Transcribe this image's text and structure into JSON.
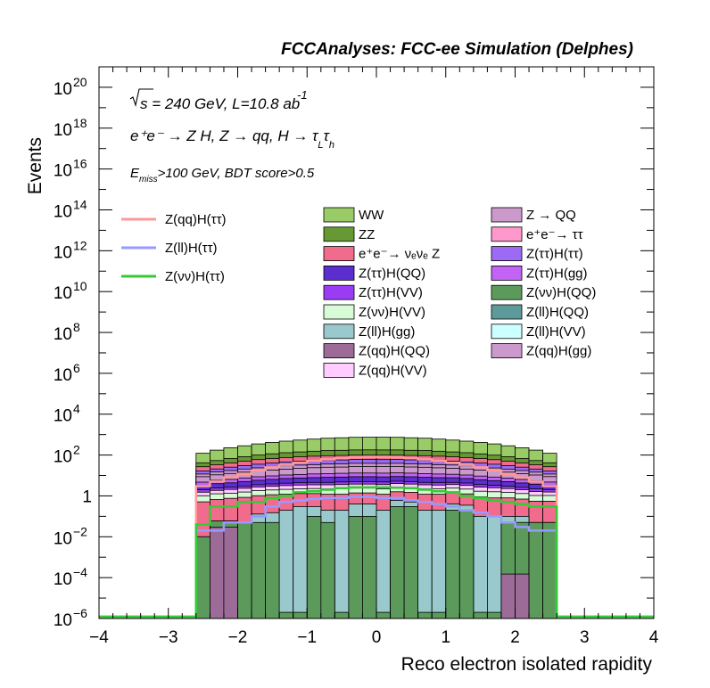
{
  "header": "FCCAnalyses: FCC-ee Simulation (Delphes)",
  "annotations": {
    "sqrt_s": "s",
    "energy_lumi": " = 240 GeV, L=10.8 ab",
    "lumi_exp": "-1",
    "process": "e⁺e⁻ → Z H, Z → qq, H → τ",
    "process_sub1": "L",
    "process_tau2": "τ",
    "process_sub2": "h",
    "cut_E": "E",
    "cut_sub": "miss",
    "cut_text": ">100 GeV, BDT score>0.5"
  },
  "chart_data": {
    "type": "histogram",
    "xlabel": "Reco electron isolated rapidity",
    "ylabel": "Events",
    "xlim": [
      -4,
      4
    ],
    "ylim": [
      1e-06,
      1e+21
    ],
    "log_y": true,
    "x_ticks": [
      "−4",
      "−3",
      "−2",
      "−1",
      "0",
      "1",
      "2",
      "3",
      "4"
    ],
    "y_ticks": [
      {
        "base": "10",
        "exp": "−6"
      },
      {
        "base": "10",
        "exp": "−4"
      },
      {
        "base": "10",
        "exp": "−2"
      },
      {
        "base": "1",
        "exp": ""
      },
      {
        "base": "10",
        "exp": "2"
      },
      {
        "base": "10",
        "exp": "4"
      },
      {
        "base": "10",
        "exp": "6"
      },
      {
        "base": "10",
        "exp": "8"
      },
      {
        "base": "10",
        "exp": "10"
      },
      {
        "base": "10",
        "exp": "12"
      },
      {
        "base": "10",
        "exp": "14"
      },
      {
        "base": "10",
        "exp": "16"
      },
      {
        "base": "10",
        "exp": "18"
      },
      {
        "base": "10",
        "exp": "20"
      }
    ],
    "bin_edges": [
      -2.6,
      -2.4,
      -2.2,
      -2.0,
      -1.8,
      -1.6,
      -1.4,
      -1.2,
      -1.0,
      -0.8,
      -0.6,
      -0.4,
      -0.2,
      0.0,
      0.2,
      0.4,
      0.6,
      0.8,
      1.0,
      1.2,
      1.4,
      1.6,
      1.8,
      2.0,
      2.2,
      2.4,
      2.6
    ],
    "stacks": [
      {
        "id": "zqq_hqq",
        "color": "#9c6b98",
        "values": [
          1e-06,
          0.03,
          0.03,
          1e-06,
          1e-06,
          1e-06,
          1e-06,
          1e-06,
          1e-06,
          1e-06,
          1e-06,
          1e-06,
          1e-06,
          1e-06,
          1e-06,
          1e-06,
          1e-06,
          1e-06,
          1e-06,
          1e-06,
          1e-06,
          1e-06,
          0.00015,
          0.00015,
          1e-06,
          1e-06
        ]
      },
      {
        "id": "zvv_hqq",
        "color": "#5c9a5c",
        "values": [
          0.01,
          0.03,
          0.03,
          0.05,
          0.05,
          0.05,
          1e-06,
          1e-06,
          0.1,
          0.05,
          1e-06,
          0.1,
          0.1,
          1e-06,
          0.3,
          0.3,
          1e-06,
          1e-06,
          0.2,
          0.2,
          1e-06,
          1e-06,
          0.05,
          0.05,
          0.05,
          0.05
        ]
      },
      {
        "id": "zll_hgg",
        "color": "#99c9cc",
        "values": [
          1e-06,
          1e-06,
          1e-06,
          1e-06,
          0.08,
          0.1,
          0.2,
          0.3,
          0.2,
          0.15,
          0.2,
          0.3,
          0.3,
          0.2,
          0.3,
          0.2,
          0.2,
          0.2,
          0.2,
          0.15,
          0.1,
          0.1,
          0.05,
          0.05,
          1e-06,
          1e-06
        ]
      },
      {
        "id": "ee_tautau",
        "color": "#f06b8c",
        "values": [
          0.5,
          0.6,
          0.7,
          0.8,
          0.9,
          1.0,
          1.0,
          1.0,
          1.0,
          1.0,
          1.0,
          1.0,
          1.0,
          1.0,
          1.0,
          1.0,
          1.0,
          1.0,
          1.0,
          0.9,
          0.8,
          0.7,
          0.7,
          0.6,
          0.5,
          0.5
        ]
      },
      {
        "id": "zvv_hvv",
        "color": "#d6fbd6",
        "values": [
          0.5,
          0.6,
          0.6,
          0.7,
          0.8,
          0.8,
          0.9,
          0.9,
          1.0,
          1.0,
          1.0,
          1.0,
          1.0,
          1.0,
          1.0,
          1.0,
          1.0,
          1.0,
          1.0,
          0.9,
          0.8,
          0.8,
          0.7,
          0.6,
          0.5,
          0.5
        ]
      },
      {
        "id": "zqq_hvv",
        "color": "#ffccff",
        "values": [
          0.5,
          0.6,
          0.7,
          0.8,
          0.9,
          1.0,
          1.1,
          1.2,
          1.2,
          1.3,
          1.4,
          1.4,
          1.4,
          1.4,
          1.4,
          1.3,
          1.3,
          1.2,
          1.2,
          1.1,
          1.0,
          0.9,
          0.8,
          0.7,
          0.6,
          0.5
        ]
      },
      {
        "id": "ztt_hvv",
        "color": "#9b3cf5",
        "values": [
          0.5,
          0.6,
          0.6,
          0.7,
          0.8,
          0.9,
          1.0,
          1.0,
          1.1,
          1.1,
          1.2,
          1.2,
          1.2,
          1.2,
          1.2,
          1.2,
          1.1,
          1.1,
          1.0,
          1.0,
          0.9,
          0.8,
          0.7,
          0.6,
          0.6,
          0.5
        ]
      },
      {
        "id": "ztt_hqq",
        "color": "#5b2fcf",
        "values": [
          1.2,
          1.5,
          1.7,
          2.0,
          2.3,
          2.6,
          2.9,
          3.1,
          3.3,
          3.5,
          3.6,
          3.7,
          3.7,
          3.7,
          3.7,
          3.6,
          3.5,
          3.3,
          3.1,
          2.9,
          2.6,
          2.3,
          2.0,
          1.7,
          1.5,
          1.2
        ]
      },
      {
        "id": "ztt_hgg",
        "color": "#c263f5",
        "values": [
          1.5,
          1.8,
          2.1,
          2.5,
          2.8,
          3.1,
          3.4,
          3.7,
          4.0,
          4.2,
          4.4,
          4.5,
          4.5,
          4.5,
          4.5,
          4.4,
          4.2,
          4.0,
          3.7,
          3.4,
          3.1,
          2.8,
          2.5,
          2.1,
          1.8,
          1.5
        ]
      },
      {
        "id": "zqq_hgg",
        "color": "#cc99cc",
        "values": [
          4,
          5,
          6,
          7,
          8,
          9,
          10,
          11,
          12,
          13,
          13,
          14,
          14,
          14,
          14,
          13,
          13,
          12,
          11,
          10,
          9,
          8,
          7,
          6,
          5,
          4
        ]
      },
      {
        "id": "z_qq",
        "color": "#cc99cc",
        "values": [
          3,
          4,
          5,
          6,
          7,
          8,
          9,
          10,
          10,
          11,
          11,
          12,
          12,
          12,
          12,
          11,
          11,
          10,
          10,
          9,
          8,
          7,
          6,
          5,
          4,
          3
        ]
      },
      {
        "id": "ztt_htt",
        "color": "#9b6bf5",
        "values": [
          5,
          6,
          8,
          10,
          12,
          14,
          16,
          17,
          19,
          20,
          21,
          21,
          21,
          21,
          21,
          21,
          20,
          19,
          17,
          16,
          14,
          12,
          10,
          8,
          6,
          5
        ]
      },
      {
        "id": "ee_vvz",
        "color": "#f06b8c",
        "values": [
          10,
          13,
          16,
          20,
          24,
          27,
          30,
          33,
          35,
          37,
          38,
          39,
          39,
          39,
          39,
          38,
          37,
          35,
          33,
          30,
          27,
          24,
          20,
          16,
          13,
          10
        ]
      },
      {
        "id": "zz",
        "color": "#669933",
        "values": [
          15,
          20,
          26,
          33,
          40,
          47,
          54,
          60,
          66,
          71,
          75,
          78,
          79,
          79,
          78,
          75,
          71,
          66,
          60,
          54,
          47,
          40,
          33,
          26,
          20,
          15
        ]
      },
      {
        "id": "ww",
        "color": "#99cc66",
        "values": [
          80,
          120,
          160,
          200,
          250,
          300,
          350,
          400,
          450,
          500,
          530,
          560,
          570,
          570,
          560,
          530,
          500,
          450,
          400,
          350,
          300,
          250,
          200,
          160,
          120,
          80
        ]
      }
    ],
    "curves": [
      {
        "id": "zqq_htt",
        "name": "Z(qq)H(ττ)",
        "color": "#ff9999",
        "values": [
          3,
          5,
          8,
          12,
          18,
          25,
          33,
          42,
          52,
          62,
          70,
          76,
          80,
          80,
          76,
          70,
          62,
          52,
          42,
          33,
          25,
          18,
          12,
          8,
          5,
          3
        ]
      },
      {
        "id": "zll_htt",
        "name": "Z(ll)H(ττ)",
        "color": "#9999ff",
        "values": [
          0.02,
          0.02,
          0.05,
          0.05,
          0.1,
          0.3,
          0.5,
          0.6,
          0.7,
          0.8,
          0.8,
          0.9,
          0.9,
          0.8,
          0.8,
          0.6,
          0.5,
          0.4,
          0.3,
          0.2,
          0.15,
          0.1,
          0.05,
          0.03,
          0.02,
          0.02
        ]
      },
      {
        "id": "zvv_htt",
        "name": "Z(νν)H(ττ)",
        "color": "#33cc33",
        "values": [
          0.04,
          0.3,
          0.3,
          0.5,
          0.5,
          0.8,
          1.0,
          1.5,
          1.7,
          2.0,
          2.4,
          2.6,
          2.6,
          2.6,
          2.5,
          2.4,
          2.0,
          1.7,
          1.5,
          1.0,
          0.8,
          0.6,
          0.5,
          0.4,
          0.3,
          0.3
        ]
      }
    ],
    "legend_lines": [
      "Z(qq)H(ττ)",
      "Z(ll)H(ττ)",
      "Z(νν)H(ττ)"
    ],
    "legend_stack": [
      {
        "label": "WW",
        "color": "#99cc66"
      },
      {
        "label": "Z → QQ",
        "color": "#cc99cc"
      },
      {
        "label": "ZZ",
        "color": "#669933"
      },
      {
        "label": "e⁺e⁻→ ττ",
        "color": "#ff99cc"
      },
      {
        "label": "e⁺e⁻→ νₑνₑ Z",
        "color": "#f06b8c"
      },
      {
        "label": "Z(ττ)H(ττ)",
        "color": "#9b6bf5"
      },
      {
        "label": "Z(ττ)H(QQ)",
        "color": "#5b2fcf"
      },
      {
        "label": "Z(ττ)H(gg)",
        "color": "#c263f5"
      },
      {
        "label": "Z(ττ)H(VV)",
        "color": "#9b3cf5"
      },
      {
        "label": "Z(νν)H(QQ)",
        "color": "#5c9a5c"
      },
      {
        "label": "Z(νν)H(VV)",
        "color": "#d6fbd6"
      },
      {
        "label": "Z(ll)H(QQ)",
        "color": "#5f9a9a"
      },
      {
        "label": "Z(ll)H(gg)",
        "color": "#99c9cc"
      },
      {
        "label": "Z(ll)H(VV)",
        "color": "#ccffff"
      },
      {
        "label": "Z(qq)H(QQ)",
        "color": "#9c6b98"
      },
      {
        "label": "Z(qq)H(gg)",
        "color": "#cc99cc"
      },
      {
        "label": "Z(qq)H(VV)",
        "color": "#ffccff"
      }
    ]
  }
}
